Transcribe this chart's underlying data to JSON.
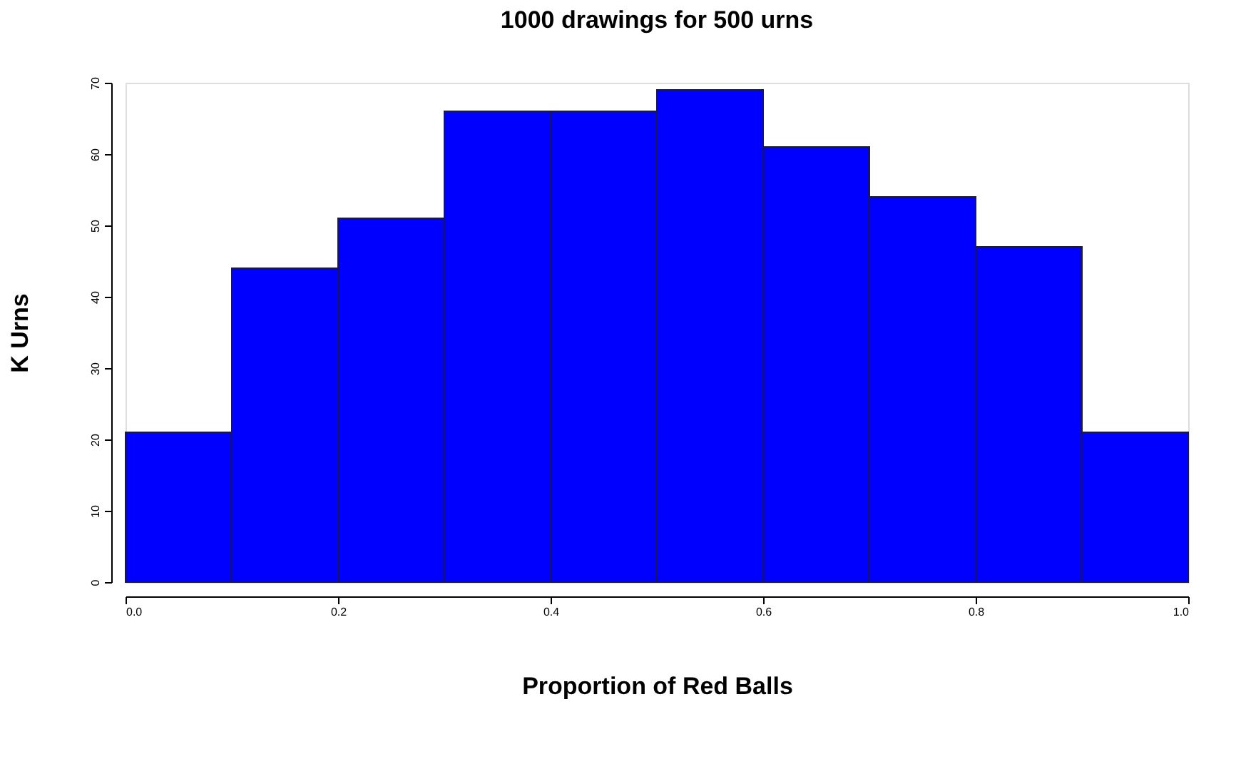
{
  "chart_data": {
    "type": "histogram",
    "title": "1000 drawings for 500 urns",
    "xlabel": "Proportion of Red Balls",
    "ylabel": "K Urns",
    "bins": [
      0,
      0.1,
      0.2,
      0.3,
      0.4,
      0.5,
      0.6,
      0.7,
      0.8,
      0.9,
      1.0
    ],
    "values": [
      21,
      44,
      51,
      66,
      66,
      69,
      61,
      54,
      47,
      21
    ],
    "color": "#0000ff",
    "xlim": [
      0,
      1
    ],
    "ylim": [
      0,
      70
    ],
    "xticks": [
      {
        "value": 0,
        "label": "0.0"
      },
      0.2,
      0.4,
      0.6,
      0.8,
      {
        "value": 1,
        "label": "1.0"
      }
    ],
    "yticks": [
      0,
      10,
      20,
      30,
      40,
      50,
      60,
      70
    ],
    "grid": false
  }
}
